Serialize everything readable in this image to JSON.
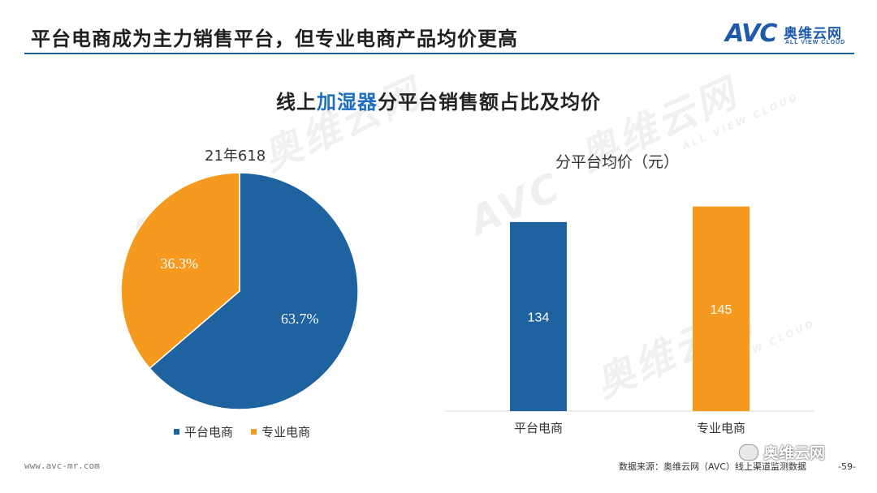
{
  "header": {
    "title": "平台电商成为主力销售平台，但专业电商产品均价更高",
    "logo_mark": "AVC",
    "logo_cn": "奥维云网",
    "logo_en": "ALL VIEW CLOUD"
  },
  "chart_heading": {
    "before": "线上",
    "highlight": "加湿器",
    "after": "分平台销售额占比及均价"
  },
  "colors": {
    "platform": "#1f62a0",
    "specialty": "#f59a1f",
    "rule": "#1f5f99",
    "highlight": "#1e6fc2"
  },
  "chart_data": [
    {
      "type": "pie",
      "title": "21年618",
      "slices": [
        {
          "label": "平台电商",
          "value": 63.7,
          "display": "63.7%"
        },
        {
          "label": "专业电商",
          "value": 36.3,
          "display": "36.3%"
        }
      ],
      "legend": [
        "平台电商",
        "专业电商"
      ],
      "legend_position": "bottom"
    },
    {
      "type": "bar",
      "title": "分平台均价（元）",
      "categories": [
        "平台电商",
        "专业电商"
      ],
      "values": [
        134,
        145
      ],
      "ylim": [
        0,
        150
      ],
      "grid": false
    }
  ],
  "footer": {
    "url": "www.avc-mr.com",
    "source": "数据来源：奥维云网（AVC）线上渠道监测数据",
    "page": "-59-",
    "account": "奥维云网"
  }
}
